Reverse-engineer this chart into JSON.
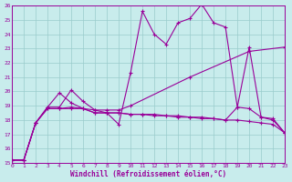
{
  "xlabel": "Windchill (Refroidissement éolien,°C)",
  "bg_color": "#c8ecec",
  "grid_color": "#99cccc",
  "line_color": "#990099",
  "xlim": [
    0,
    23
  ],
  "ylim": [
    15,
    26
  ],
  "xticks": [
    0,
    1,
    2,
    3,
    4,
    5,
    6,
    7,
    8,
    9,
    10,
    11,
    12,
    13,
    14,
    15,
    16,
    17,
    18,
    19,
    20,
    21,
    22,
    23
  ],
  "yticks": [
    15,
    16,
    17,
    18,
    19,
    20,
    21,
    22,
    23,
    24,
    25,
    26
  ],
  "lines": [
    {
      "x": [
        0,
        1,
        2,
        3,
        4,
        5,
        6,
        7,
        8,
        9,
        10,
        11,
        12,
        13,
        14,
        15,
        16,
        17,
        18,
        19,
        20,
        21,
        22,
        23
      ],
      "y": [
        15.2,
        15.2,
        17.8,
        18.9,
        18.9,
        20.1,
        19.3,
        18.7,
        18.5,
        17.7,
        21.3,
        25.6,
        24.0,
        23.3,
        24.8,
        25.1,
        26.1,
        24.8,
        24.5,
        18.9,
        23.1,
        18.2,
        18.1,
        17.1
      ]
    },
    {
      "x": [
        0,
        1,
        2,
        3,
        4,
        5,
        6,
        7,
        8,
        9,
        10,
        11,
        12,
        13,
        14,
        15,
        16,
        17,
        18,
        19,
        20,
        21,
        22,
        23
      ],
      "y": [
        15.2,
        15.2,
        17.8,
        18.8,
        18.8,
        18.9,
        18.8,
        18.5,
        18.5,
        18.5,
        18.4,
        18.4,
        18.4,
        18.3,
        18.3,
        18.2,
        18.2,
        18.1,
        18.0,
        18.0,
        17.9,
        17.8,
        17.7,
        17.1
      ]
    },
    {
      "x": [
        0,
        1,
        2,
        3,
        4,
        5,
        6,
        7,
        8,
        9,
        10,
        11,
        12,
        13,
        14,
        15,
        16,
        17,
        18,
        19,
        20,
        21,
        22,
        23
      ],
      "y": [
        15.2,
        15.2,
        17.8,
        18.9,
        19.9,
        19.2,
        18.8,
        18.5,
        18.5,
        18.5,
        18.4,
        18.4,
        18.3,
        18.3,
        18.2,
        18.2,
        18.1,
        18.1,
        18.0,
        18.9,
        18.8,
        18.2,
        18.0,
        17.1
      ]
    },
    {
      "x": [
        0,
        1,
        2,
        3,
        4,
        5,
        6,
        7,
        8,
        9,
        10,
        15,
        20,
        23
      ],
      "y": [
        15.2,
        15.2,
        17.8,
        18.8,
        18.8,
        18.8,
        18.8,
        18.7,
        18.7,
        18.7,
        19.0,
        21.0,
        22.8,
        23.1
      ]
    }
  ]
}
